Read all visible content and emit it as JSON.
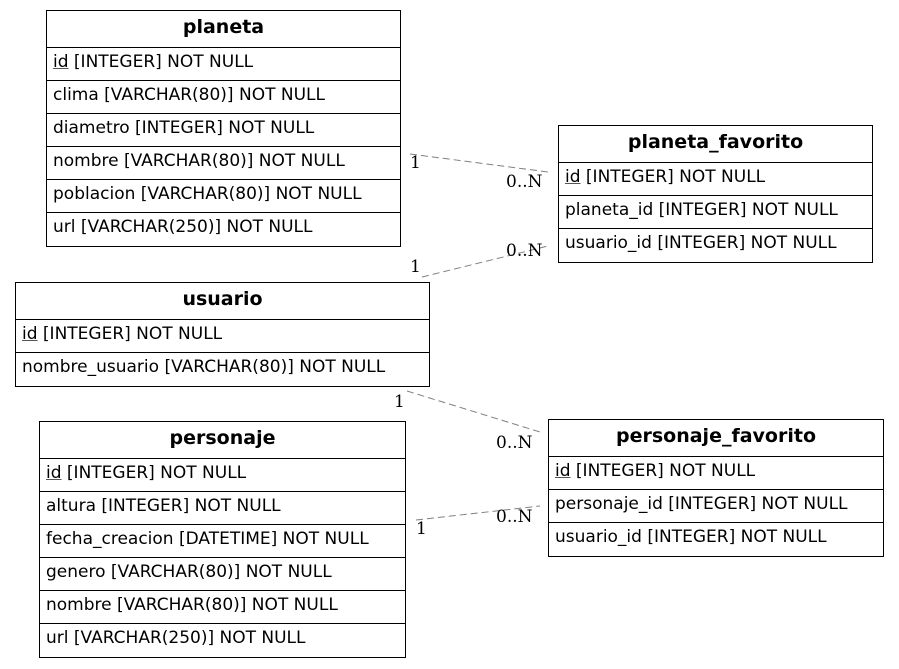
{
  "entities": {
    "planeta": {
      "title": "planeta",
      "rows": [
        {
          "pk": "id",
          "rest": " [INTEGER] NOT NULL"
        },
        {
          "text": "clima [VARCHAR(80)] NOT NULL"
        },
        {
          "text": "diametro [INTEGER] NOT NULL"
        },
        {
          "text": "nombre [VARCHAR(80)] NOT NULL"
        },
        {
          "text": "poblacion [VARCHAR(80)] NOT NULL"
        },
        {
          "text": "url [VARCHAR(250)] NOT NULL"
        }
      ]
    },
    "planeta_favorito": {
      "title": "planeta_favorito",
      "rows": [
        {
          "pk": "id",
          "rest": " [INTEGER] NOT NULL"
        },
        {
          "text": "planeta_id [INTEGER] NOT NULL"
        },
        {
          "text": "usuario_id [INTEGER] NOT NULL"
        }
      ]
    },
    "usuario": {
      "title": "usuario",
      "rows": [
        {
          "pk": "id",
          "rest": " [INTEGER] NOT NULL"
        },
        {
          "text": "nombre_usuario [VARCHAR(80)] NOT NULL"
        }
      ]
    },
    "personaje": {
      "title": "personaje",
      "rows": [
        {
          "pk": "id",
          "rest": " [INTEGER] NOT NULL"
        },
        {
          "text": "altura [INTEGER] NOT NULL"
        },
        {
          "text": "fecha_creacion [DATETIME] NOT NULL"
        },
        {
          "text": "genero [VARCHAR(80)] NOT NULL"
        },
        {
          "text": "nombre [VARCHAR(80)] NOT NULL"
        },
        {
          "text": "url [VARCHAR(250)] NOT NULL"
        }
      ]
    },
    "personaje_favorito": {
      "title": "personaje_favorito",
      "rows": [
        {
          "pk": "id",
          "rest": " [INTEGER] NOT NULL"
        },
        {
          "text": "personaje_id [INTEGER] NOT NULL"
        },
        {
          "text": "usuario_id [INTEGER] NOT NULL"
        }
      ]
    }
  },
  "relationships": [
    {
      "from": "planeta",
      "to": "planeta_favorito",
      "from_label": "1",
      "to_label": "0..N"
    },
    {
      "from": "usuario",
      "to": "planeta_favorito",
      "from_label": "1",
      "to_label": "0..N"
    },
    {
      "from": "usuario",
      "to": "personaje_favorito",
      "from_label": "1",
      "to_label": "0..N"
    },
    {
      "from": "personaje",
      "to": "personaje_favorito",
      "from_label": "1",
      "to_label": "0..N"
    }
  ],
  "colors": {
    "line": "#808080",
    "border": "#000000",
    "background": "#ffffff"
  }
}
